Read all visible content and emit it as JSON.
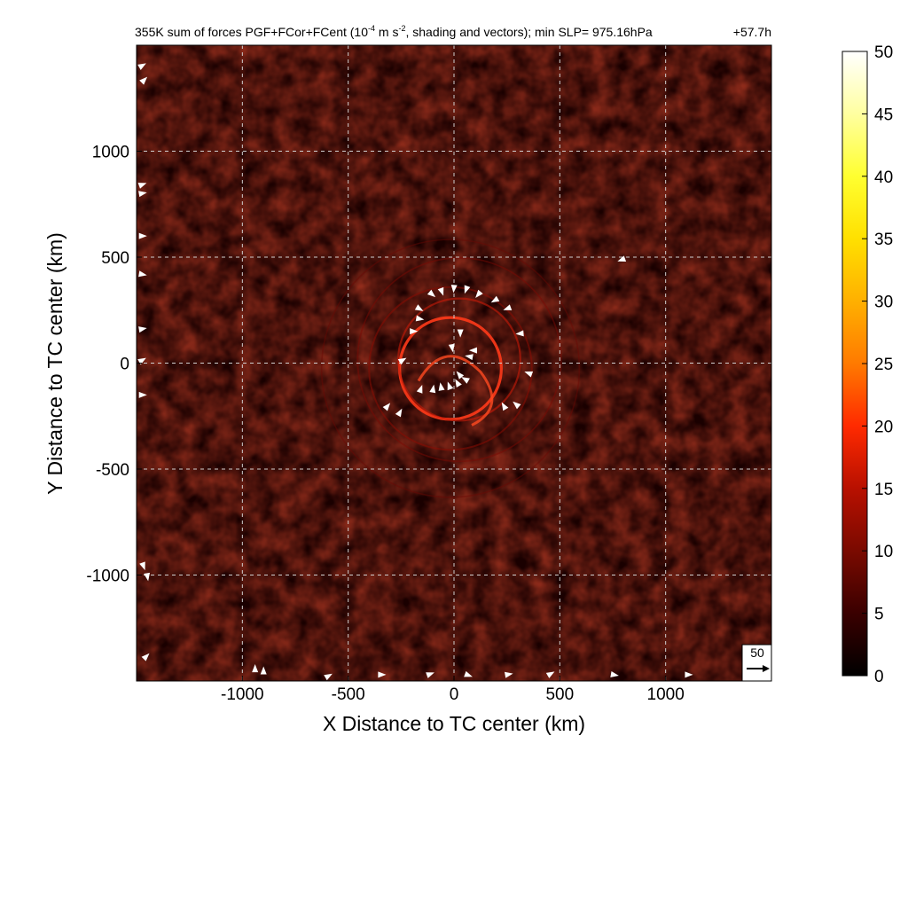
{
  "title": {
    "prefix": "355K sum of forces PGF+FCor+FCent (10",
    "exponent1": "-4",
    "middle": " m s",
    "exponent2": "-2",
    "suffix": ", shading and vectors); min SLP= 975.16hPa",
    "time": "+57.7h"
  },
  "chart_data": {
    "type": "heatmap",
    "description_units": "10^-4 m s^-2",
    "xlabel": "X Distance to TC center (km)",
    "ylabel": "Y Distance to TC center (km)",
    "xlim": [
      -1500,
      1500
    ],
    "ylim": [
      -1500,
      1500
    ],
    "x_ticks": [
      -1000,
      -500,
      0,
      500,
      1000
    ],
    "x_tick_labels": [
      "-1000",
      "-500",
      "0",
      "500",
      "1000"
    ],
    "y_ticks": [
      -1000,
      -500,
      0,
      500,
      1000
    ],
    "y_tick_labels": [
      "-1000",
      "-500",
      "0",
      "500",
      "1000"
    ],
    "grid": true,
    "colorbar": {
      "min": 0,
      "max": 50,
      "ticks": [
        0,
        5,
        10,
        15,
        20,
        25,
        30,
        35,
        40,
        45,
        50
      ],
      "tick_labels": [
        "0",
        "5",
        "10",
        "15",
        "20",
        "25",
        "30",
        "35",
        "40",
        "45",
        "50"
      ],
      "colormap": [
        "#000000",
        "#3a0000",
        "#7a0a00",
        "#b81000",
        "#ff2a00",
        "#ff7a00",
        "#ffb000",
        "#ffe000",
        "#ffff30",
        "#ffffa0",
        "#ffffff"
      ]
    },
    "reference_vector": {
      "label": "50",
      "magnitude": 50
    },
    "vectors": [
      {
        "x": -110,
        "y": 330,
        "dir": 130
      },
      {
        "x": -60,
        "y": 345,
        "dir": 160
      },
      {
        "x": 0,
        "y": 360,
        "dir": 185
      },
      {
        "x": 60,
        "y": 355,
        "dir": 200
      },
      {
        "x": 120,
        "y": 330,
        "dir": 220
      },
      {
        "x": 200,
        "y": 300,
        "dir": 240
      },
      {
        "x": 260,
        "y": 260,
        "dir": 250
      },
      {
        "x": 320,
        "y": 140,
        "dir": 265
      },
      {
        "x": 360,
        "y": -50,
        "dir": 290
      },
      {
        "x": 300,
        "y": -200,
        "dir": 310
      },
      {
        "x": 240,
        "y": -210,
        "dir": 330
      },
      {
        "x": -170,
        "y": 260,
        "dir": 120
      },
      {
        "x": -170,
        "y": 210,
        "dir": 100
      },
      {
        "x": -200,
        "y": 150,
        "dir": 90
      },
      {
        "x": -250,
        "y": 10,
        "dir": 60
      },
      {
        "x": -320,
        "y": -210,
        "dir": 40
      },
      {
        "x": -260,
        "y": -240,
        "dir": 30
      },
      {
        "x": -160,
        "y": -130,
        "dir": 20
      },
      {
        "x": -100,
        "y": -130,
        "dir": 10
      },
      {
        "x": -60,
        "y": -120,
        "dir": 350
      },
      {
        "x": -20,
        "y": -115,
        "dir": 340
      },
      {
        "x": 20,
        "y": -100,
        "dir": 330
      },
      {
        "x": 30,
        "y": -60,
        "dir": 320
      },
      {
        "x": 60,
        "y": -80,
        "dir": 300
      },
      {
        "x": 80,
        "y": 30,
        "dir": 280
      },
      {
        "x": 100,
        "y": 60,
        "dir": 270
      },
      {
        "x": 30,
        "y": 150,
        "dir": 180
      },
      {
        "x": -10,
        "y": 80,
        "dir": 170
      },
      {
        "x": 800,
        "y": 490,
        "dir": 250
      },
      {
        "x": -1480,
        "y": 1400,
        "dir": 60
      },
      {
        "x": -1470,
        "y": 1330,
        "dir": 45
      },
      {
        "x": -1480,
        "y": 840,
        "dir": 70
      },
      {
        "x": -1480,
        "y": 800,
        "dir": 80
      },
      {
        "x": -1480,
        "y": 600,
        "dir": 90
      },
      {
        "x": -1480,
        "y": 420,
        "dir": 100
      },
      {
        "x": -1480,
        "y": 160,
        "dir": 80
      },
      {
        "x": -1480,
        "y": 10,
        "dir": 60
      },
      {
        "x": -1480,
        "y": -150,
        "dir": 90
      },
      {
        "x": -1470,
        "y": -950,
        "dir": 160
      },
      {
        "x": -1450,
        "y": -1000,
        "dir": 170
      },
      {
        "x": -1460,
        "y": -1390,
        "dir": 45
      },
      {
        "x": -940,
        "y": -1450,
        "dir": 0
      },
      {
        "x": -900,
        "y": -1460,
        "dir": 0
      },
      {
        "x": -600,
        "y": -1480,
        "dir": 60
      },
      {
        "x": -350,
        "y": -1470,
        "dir": 90
      },
      {
        "x": -120,
        "y": -1470,
        "dir": 70
      },
      {
        "x": 60,
        "y": -1470,
        "dir": 110
      },
      {
        "x": 250,
        "y": -1470,
        "dir": 80
      },
      {
        "x": 450,
        "y": -1470,
        "dir": 60
      },
      {
        "x": 750,
        "y": -1470,
        "dir": 100
      },
      {
        "x": 1100,
        "y": -1470,
        "dir": 90
      }
    ]
  }
}
